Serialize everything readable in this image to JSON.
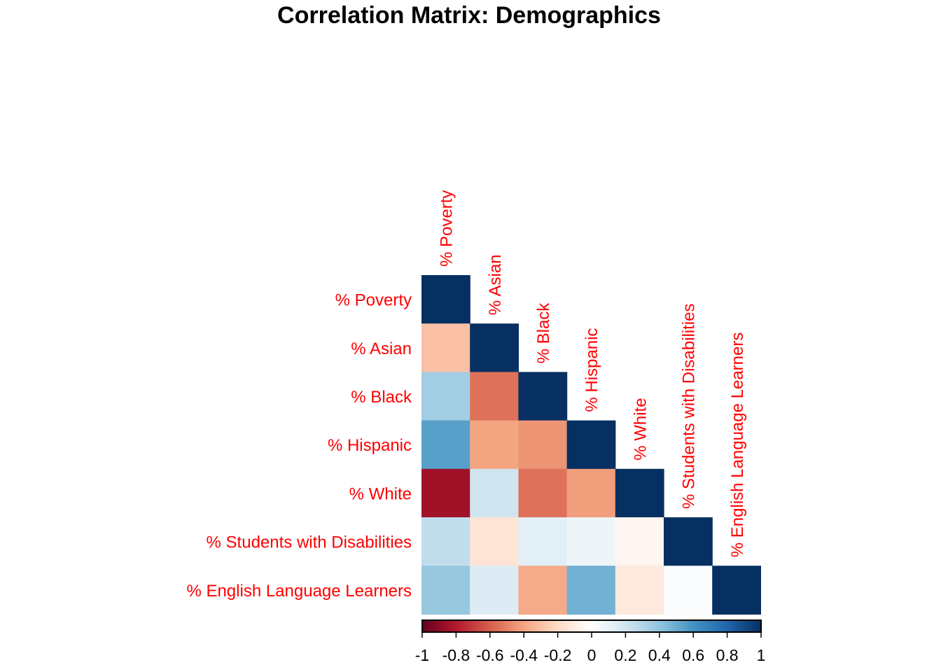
{
  "chart_data": {
    "type": "heatmap",
    "title": "Correlation Matrix: Demographics",
    "variables": [
      "% Poverty",
      "% Asian",
      "% Black",
      "% Hispanic",
      "% White",
      "% Students with Disabilities",
      "% English Language Learners"
    ],
    "lower_triangle": [
      [
        1
      ],
      [
        -0.3,
        1
      ],
      [
        0.35,
        -0.55,
        1
      ],
      [
        0.55,
        -0.4,
        -0.45,
        1
      ],
      [
        -0.85,
        0.2,
        -0.55,
        -0.42,
        1
      ],
      [
        0.25,
        -0.15,
        0.12,
        0.08,
        -0.05,
        1
      ],
      [
        0.38,
        0.15,
        -0.38,
        0.48,
        -0.12,
        0.02,
        1
      ]
    ],
    "colorbar": {
      "range": [
        -1,
        1
      ],
      "ticks": [
        "-1",
        "-0.8",
        "-0.6",
        "-0.4",
        "-0.2",
        "0",
        "0.2",
        "0.4",
        "0.6",
        "0.8",
        "1"
      ]
    },
    "colors": {
      "label": "#ff0000",
      "negative_strong": "#67001f",
      "neutral": "#ffffff",
      "positive_strong": "#053061"
    },
    "layout_shape": "lower-triangular",
    "legend_placement": "bottom"
  }
}
